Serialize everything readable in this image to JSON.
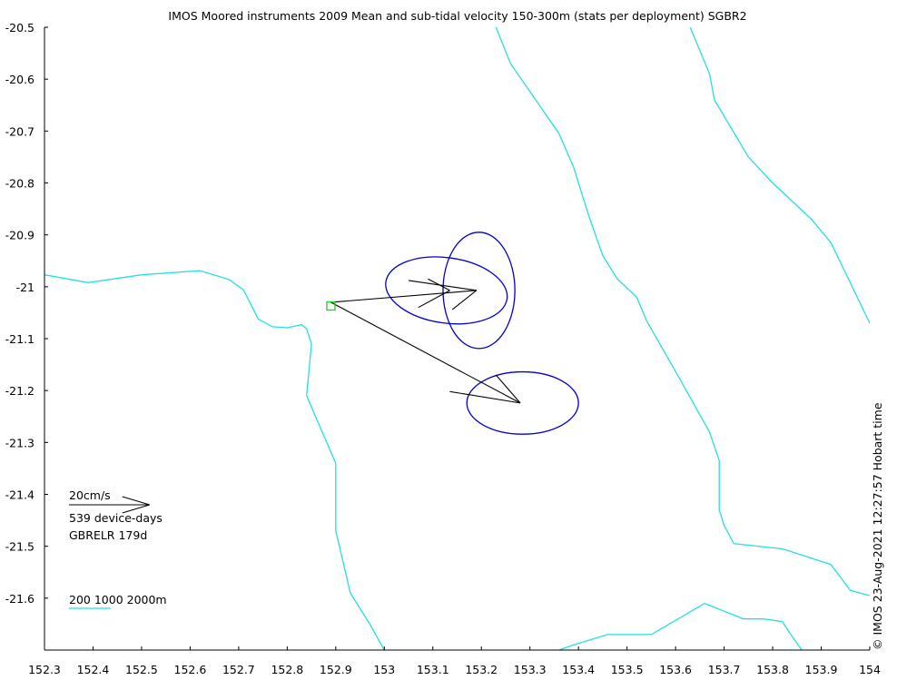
{
  "chart_data": {
    "type": "scatter",
    "title": "IMOS Moored instruments 2009 Mean and sub-tidal velocity 150-300m (stats per deployment) SGBR2",
    "xlim": [
      152.3,
      154.0
    ],
    "ylim": [
      -21.7,
      -20.5
    ],
    "x_ticks": [
      152.3,
      152.4,
      152.5,
      152.6,
      152.7,
      152.8,
      152.9,
      153,
      153.1,
      153.2,
      153.3,
      153.4,
      153.5,
      153.6,
      153.7,
      153.8,
      153.9,
      154
    ],
    "y_ticks": [
      -20.5,
      -20.6,
      -20.7,
      -20.8,
      -20.9,
      -21,
      -21.1,
      -21.2,
      -21.3,
      -21.4,
      -21.5,
      -21.6
    ],
    "grid": false,
    "mooring": {
      "x": 152.89,
      "y": -21.037,
      "color": "#22cc22"
    },
    "mean_vectors": [
      {
        "from": [
          152.89,
          -21.03
        ],
        "to": [
          153.19,
          -21.007
        ]
      },
      {
        "from": [
          152.89,
          -21.03
        ],
        "to": [
          153.28,
          -21.224
        ]
      }
    ],
    "vector_heads": [
      {
        "tip": [
          153.19,
          -21.007
        ],
        "barbs": [
          [
            153.05,
            -20.988
          ],
          [
            153.14,
            -21.044
          ]
        ]
      },
      {
        "tip": [
          153.135,
          -21.007
        ],
        "barbs": [
          [
            153.09,
            -20.985
          ],
          [
            153.07,
            -21.04
          ]
        ]
      },
      {
        "tip": [
          153.28,
          -21.224
        ],
        "barbs": [
          [
            153.23,
            -21.17
          ],
          [
            153.135,
            -21.202
          ]
        ]
      }
    ],
    "variance_ellipses": [
      {
        "center": [
          153.128,
          -21.007
        ],
        "rx": 0.126,
        "ry": 0.063,
        "angle_deg": 8
      },
      {
        "center": [
          153.195,
          -21.007
        ],
        "rx": 0.074,
        "ry": 0.112,
        "angle_deg": 0
      },
      {
        "center": [
          153.285,
          -21.224
        ],
        "rx": 0.115,
        "ry": 0.06,
        "angle_deg": 0
      }
    ],
    "ellipse_color": "#0000cc",
    "isobath_color": "#22e0e0",
    "isobaths": [
      [
        [
          152.3,
          -20.977
        ],
        [
          152.39,
          -20.992
        ],
        [
          152.5,
          -20.977
        ],
        [
          152.62,
          -20.969
        ],
        [
          152.68,
          -20.986
        ],
        [
          152.71,
          -21.006
        ],
        [
          152.74,
          -21.062
        ],
        [
          152.77,
          -21.077
        ],
        [
          152.8,
          -21.079
        ],
        [
          152.83,
          -21.073
        ],
        [
          152.84,
          -21.081
        ],
        [
          152.85,
          -21.11
        ],
        [
          152.84,
          -21.21
        ],
        [
          152.9,
          -21.34
        ],
        [
          152.9,
          -21.39
        ],
        [
          152.9,
          -21.47
        ],
        [
          152.93,
          -21.59
        ],
        [
          152.97,
          -21.65
        ],
        [
          153.0,
          -21.7
        ]
      ],
      [
        [
          153.23,
          -20.5
        ],
        [
          153.26,
          -20.57
        ],
        [
          153.36,
          -20.705
        ],
        [
          153.39,
          -20.77
        ],
        [
          153.42,
          -20.86
        ],
        [
          153.45,
          -20.94
        ],
        [
          153.48,
          -20.985
        ],
        [
          153.52,
          -21.02
        ],
        [
          153.54,
          -21.065
        ],
        [
          153.61,
          -21.18
        ],
        [
          153.67,
          -21.28
        ],
        [
          153.69,
          -21.335
        ],
        [
          153.69,
          -21.43
        ],
        [
          153.7,
          -21.46
        ],
        [
          153.72,
          -21.495
        ],
        [
          153.82,
          -21.505
        ],
        [
          153.92,
          -21.535
        ],
        [
          153.96,
          -21.585
        ],
        [
          154.0,
          -21.595
        ]
      ],
      [
        [
          153.63,
          -20.5
        ],
        [
          153.67,
          -20.59
        ],
        [
          153.68,
          -20.64
        ],
        [
          153.75,
          -20.75
        ],
        [
          153.8,
          -20.8
        ],
        [
          153.88,
          -20.87
        ],
        [
          153.92,
          -20.915
        ],
        [
          154.0,
          -21.07
        ]
      ],
      [
        [
          153.36,
          -21.7
        ],
        [
          153.39,
          -21.69
        ],
        [
          153.46,
          -21.67
        ],
        [
          153.55,
          -21.67
        ],
        [
          153.66,
          -21.61
        ],
        [
          153.74,
          -21.64
        ],
        [
          153.78,
          -21.64
        ],
        [
          153.82,
          -21.645
        ],
        [
          153.83,
          -21.66
        ],
        [
          153.86,
          -21.7
        ]
      ]
    ],
    "scale_arrow": {
      "label": "20cm/s",
      "length_deg": 0.166
    },
    "legend_text": [
      "539 device-days",
      "GBRELR 179d"
    ],
    "isobath_legend": "200 1000 2000m",
    "timestamp": "© IMOS 23-Aug-2021 12:27:57 Hobart time"
  }
}
